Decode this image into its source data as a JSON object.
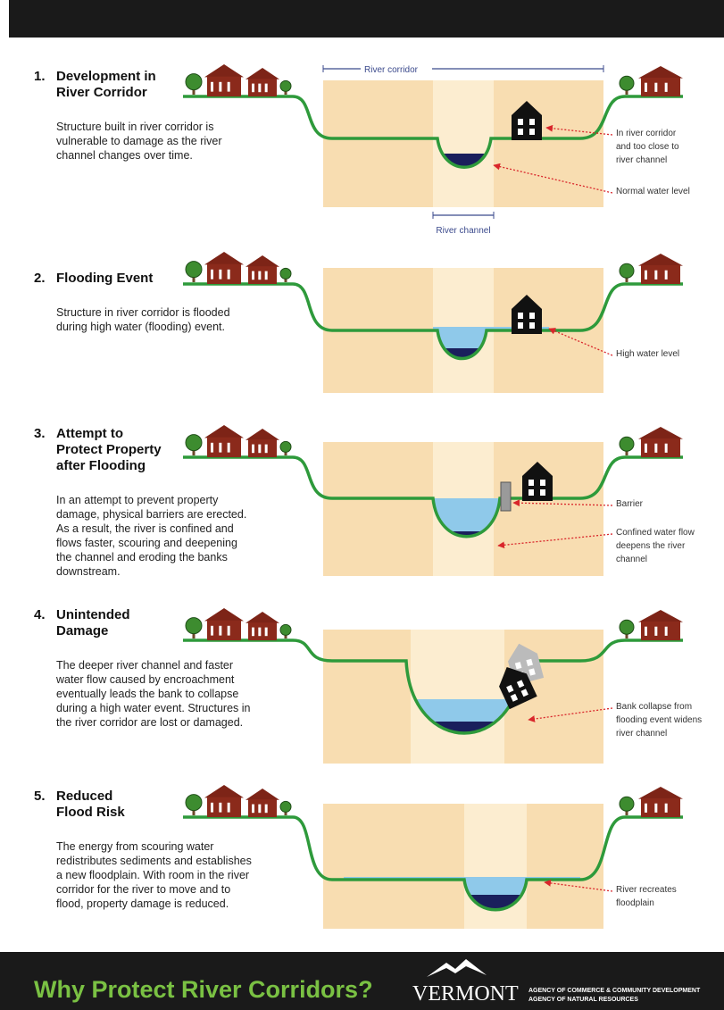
{
  "panels": [
    {
      "number": "1.",
      "title_lines": [
        "Development in",
        "River Corridor"
      ],
      "body_lines": [
        "Structure built in river corridor is",
        "vulnerable to damage as the river",
        "channel changes over time."
      ],
      "callouts": [
        {
          "lines": [
            "In river corridor",
            "and too close to",
            "river channel"
          ]
        },
        {
          "lines": [
            "Normal water level"
          ]
        }
      ],
      "corridor_label": "River corridor",
      "channel_label": "River channel"
    },
    {
      "number": "2.",
      "title_lines": [
        "Flooding Event"
      ],
      "body_lines": [
        "Structure in river corridor is flooded",
        "during high water (flooding) event."
      ],
      "callouts": [
        {
          "lines": [
            "High water level"
          ]
        }
      ]
    },
    {
      "number": "3.",
      "title_lines": [
        "Attempt to",
        "Protect Property",
        "after Flooding"
      ],
      "body_lines": [
        "In an attempt to prevent property",
        "damage, physical barriers are erected.",
        "As a result, the river is confined and",
        "flows faster, scouring and deepening",
        "the channel and eroding the banks",
        "downstream."
      ],
      "callouts": [
        {
          "lines": [
            "Barrier"
          ]
        },
        {
          "lines": [
            "Confined water flow",
            "deepens the river",
            "channel"
          ]
        }
      ]
    },
    {
      "number": "4.",
      "title_lines": [
        "Unintended",
        "Damage"
      ],
      "body_lines": [
        "The deeper river channel and faster",
        "water flow caused by encroachment",
        "eventually leads the bank to collapse",
        "during a high water event. Structures in",
        "the river corridor are lost or damaged."
      ],
      "callouts": [
        {
          "lines": [
            "Bank collapse from",
            "flooding event widens",
            "river channel"
          ]
        }
      ]
    },
    {
      "number": "5.",
      "title_lines": [
        "Reduced",
        "Flood Risk"
      ],
      "body_lines": [
        "The energy from scouring water",
        "redistributes sediments and establishes",
        "a new floodplain. With room in the river",
        "corridor for the river to move and to",
        "flood, property damage is reduced."
      ],
      "callouts": [
        {
          "lines": [
            "River recreates",
            "floodplain"
          ]
        }
      ]
    }
  ],
  "footer": {
    "title": "Why Protect River Corridors?",
    "logo": "VERMONT",
    "agency_lines": [
      "AGENCY OF COMMERCE & COMMUNITY DEVELOPMENT",
      "AGENCY OF NATURAL RESOURCES"
    ]
  }
}
